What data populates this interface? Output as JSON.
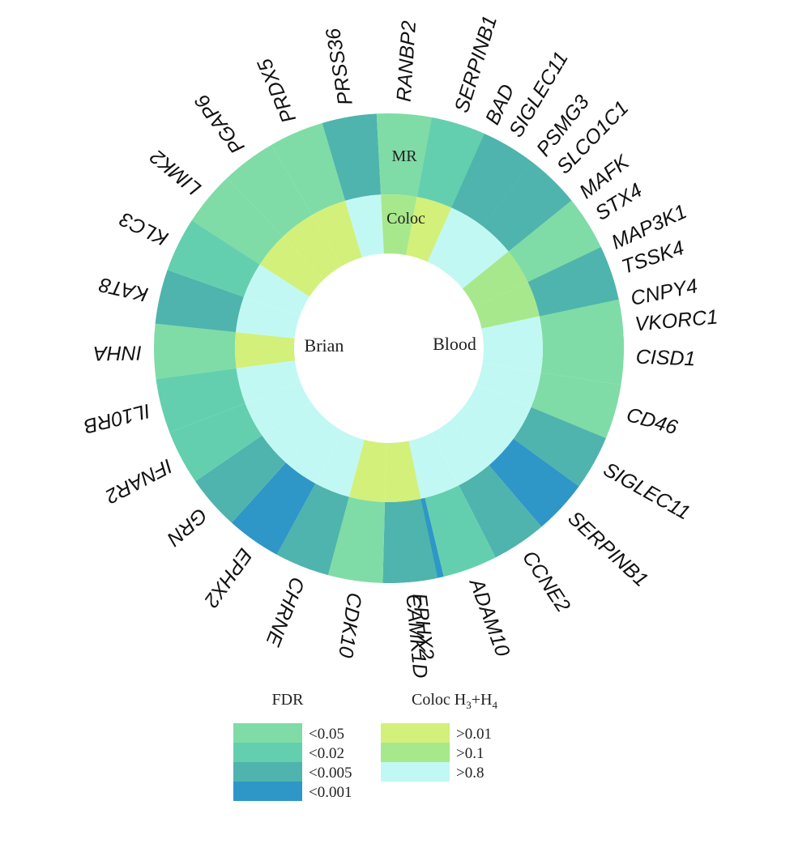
{
  "chart_data": {
    "type": "heatmap",
    "layout": "circular",
    "ring_labels": {
      "outer": "MR",
      "inner": "Coloc"
    },
    "fdr_colors": {
      "<0.05": "#7fdca6",
      "<0.02": "#64cfaf",
      "<0.005": "#4fb4ad",
      "<0.001": "#2f96c8"
    },
    "coloc_colors": {
      ">0.01": "#d3f07a",
      ">0.1": "#a8e88c",
      ">0.8": "#c2f8f3"
    },
    "groups": [
      {
        "name": "Blood",
        "genes": [
          {
            "gene": "BAD",
            "fdr": "<0.005",
            "coloc": ">0.01"
          },
          {
            "gene": "PSMG3",
            "fdr": "<0.05",
            "coloc": ">0.01"
          },
          {
            "gene": "MAFK",
            "fdr": "<0.05",
            "coloc": ">0.8"
          },
          {
            "gene": "MAP3K1",
            "fdr": "<0.05",
            "coloc": ">0.8"
          },
          {
            "gene": "CNPY4",
            "fdr": "<0.02",
            "coloc": ">0.8"
          },
          {
            "gene": "CISD1",
            "fdr": "<0.05",
            "coloc": ">0.8"
          },
          {
            "gene": "CD46",
            "fdr": "<0.05",
            "coloc": ">0.8"
          },
          {
            "gene": "SIGLEC11",
            "fdr": "<0.005",
            "coloc": ">0.8"
          },
          {
            "gene": "SERPINB1",
            "fdr": "<0.001",
            "coloc": ">0.8"
          },
          {
            "gene": "CCNE2",
            "fdr": "<0.005",
            "coloc": ">0.8"
          },
          {
            "gene": "ADAM10",
            "fdr": "<0.02",
            "coloc": ">0.8"
          },
          {
            "gene": "EPHX2",
            "fdr": "<0.001",
            "coloc": ">0.8"
          }
        ]
      },
      {
        "name": "Brian",
        "genes": [
          {
            "gene": "CAMK1D",
            "fdr": "<0.005",
            "coloc": ">0.01"
          },
          {
            "gene": "CDK10",
            "fdr": "<0.05",
            "coloc": ">0.01"
          },
          {
            "gene": "CHRNE",
            "fdr": "<0.005",
            "coloc": ">0.8"
          },
          {
            "gene": "EPHX2",
            "fdr": "<0.001",
            "coloc": ">0.8"
          },
          {
            "gene": "GRN",
            "fdr": "<0.005",
            "coloc": ">0.8"
          },
          {
            "gene": "IFNAR2",
            "fdr": "<0.02",
            "coloc": ">0.8"
          },
          {
            "gene": "IL10RB",
            "fdr": "<0.02",
            "coloc": ">0.8"
          },
          {
            "gene": "INHA",
            "fdr": "<0.05",
            "coloc": ">0.01"
          },
          {
            "gene": "KAT8",
            "fdr": "<0.005",
            "coloc": ">0.8"
          },
          {
            "gene": "KLC3",
            "fdr": "<0.02",
            "coloc": ">0.8"
          },
          {
            "gene": "LIMK2",
            "fdr": "<0.05",
            "coloc": ">0.01"
          },
          {
            "gene": "PGAP6",
            "fdr": "<0.05",
            "coloc": ">0.01"
          },
          {
            "gene": "PRDX5",
            "fdr": "<0.05",
            "coloc": ">0.01"
          },
          {
            "gene": "PRSS36",
            "fdr": "<0.005",
            "coloc": ">0.8"
          },
          {
            "gene": "RANBP2",
            "fdr": "<0.05",
            "coloc": ">0.1"
          },
          {
            "gene": "SERPINB1",
            "fdr": "<0.02",
            "coloc": ">0.01"
          },
          {
            "gene": "SIGLEC11",
            "fdr": "<0.005",
            "coloc": ">0.8"
          },
          {
            "gene": "SLCO1C1",
            "fdr": "<0.005",
            "coloc": ">0.8"
          },
          {
            "gene": "STX4",
            "fdr": "<0.05",
            "coloc": ">0.1"
          },
          {
            "gene": "TSSK4",
            "fdr": "<0.005",
            "coloc": ">0.1"
          },
          {
            "gene": "VKORC1",
            "fdr": "<0.05",
            "coloc": ">0.8"
          }
        ]
      }
    ],
    "legend": {
      "fdr_title": "FDR",
      "fdr_levels": [
        "<0.05",
        "<0.02",
        "<0.005",
        "<0.001"
      ],
      "coloc_title_main": "Coloc H",
      "coloc_sub_a": "3",
      "coloc_plus": "+H",
      "coloc_sub_b": "4",
      "coloc_levels": [
        ">0.01",
        ">0.1",
        ">0.8"
      ]
    }
  }
}
